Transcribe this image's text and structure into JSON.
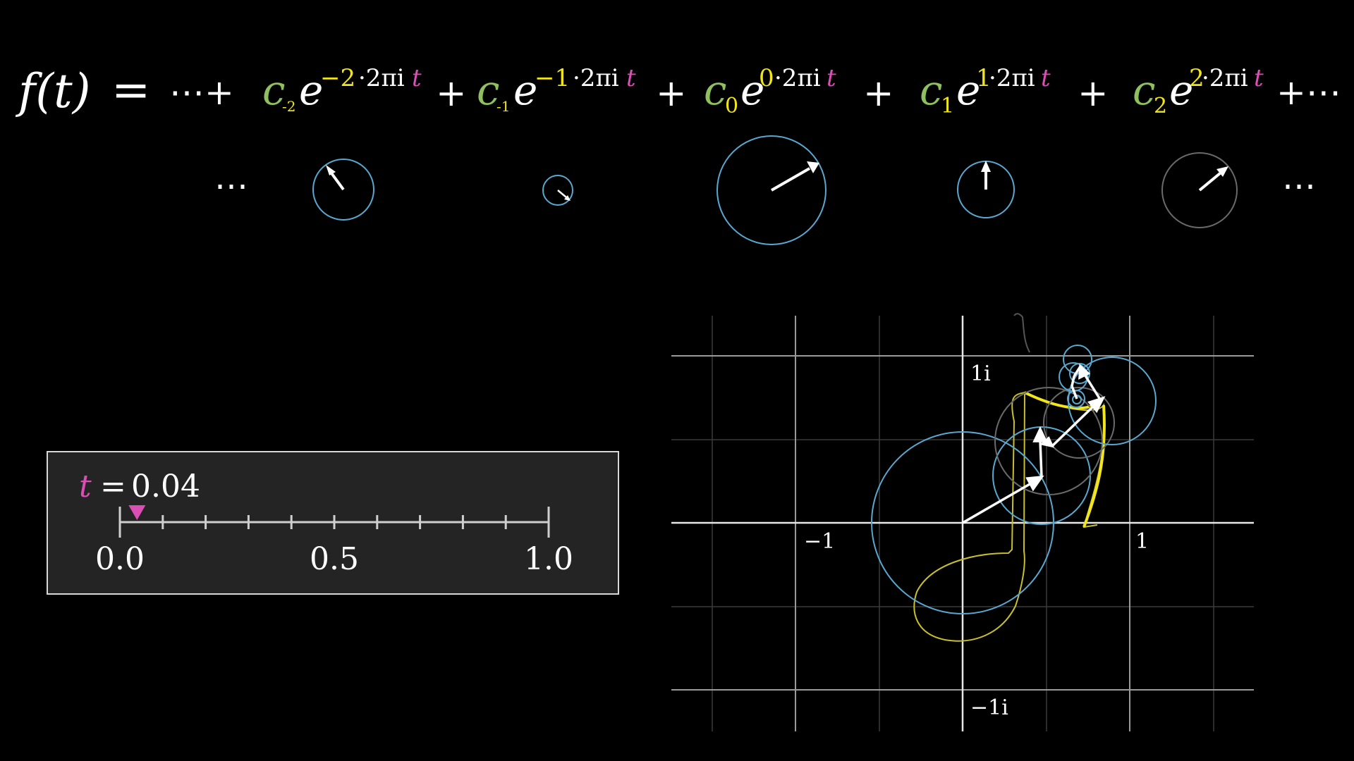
{
  "formula": {
    "lhs": "f(t)",
    "equals": "=",
    "leading": "⋯+",
    "trailing": "+⋯",
    "plus": "+",
    "terms": [
      {
        "coef": "c",
        "sub": "-2",
        "base": "e",
        "k": "−2",
        "exp_rest": "·2πi",
        "t": "t"
      },
      {
        "coef": "c",
        "sub": "-1",
        "base": "e",
        "k": "−1",
        "exp_rest": "·2πi",
        "t": "t"
      },
      {
        "coef": "c",
        "sub": "0",
        "base": "e",
        "k": "0",
        "exp_rest": "·2πi",
        "t": "t"
      },
      {
        "coef": "c",
        "sub": "1",
        "base": "e",
        "k": "1",
        "exp_rest": "·2πi",
        "t": "t"
      },
      {
        "coef": "c",
        "sub": "2",
        "base": "e",
        "k": "2",
        "exp_rest": "·2πi",
        "t": "t"
      }
    ]
  },
  "ellipsis": "⋯",
  "slider": {
    "var": "t",
    "equals": "=",
    "value": "0.04",
    "position": 0.04,
    "tick_labels": [
      "0.0",
      "0.5",
      "1.0"
    ]
  },
  "plane": {
    "labels": {
      "x_neg": "−1",
      "x_pos": "1",
      "y_pos": "1i",
      "y_neg": "−1i"
    }
  },
  "colors": {
    "coef_green": "#8fbf5f",
    "exponent_yellow": "#f0e41a",
    "t_pink": "#d94fb3",
    "circle_blue": "#5aa7cf",
    "circle_gray": "#6a6a6a",
    "path_yellow": "#f2e51c",
    "panel_bg": "#242424"
  }
}
